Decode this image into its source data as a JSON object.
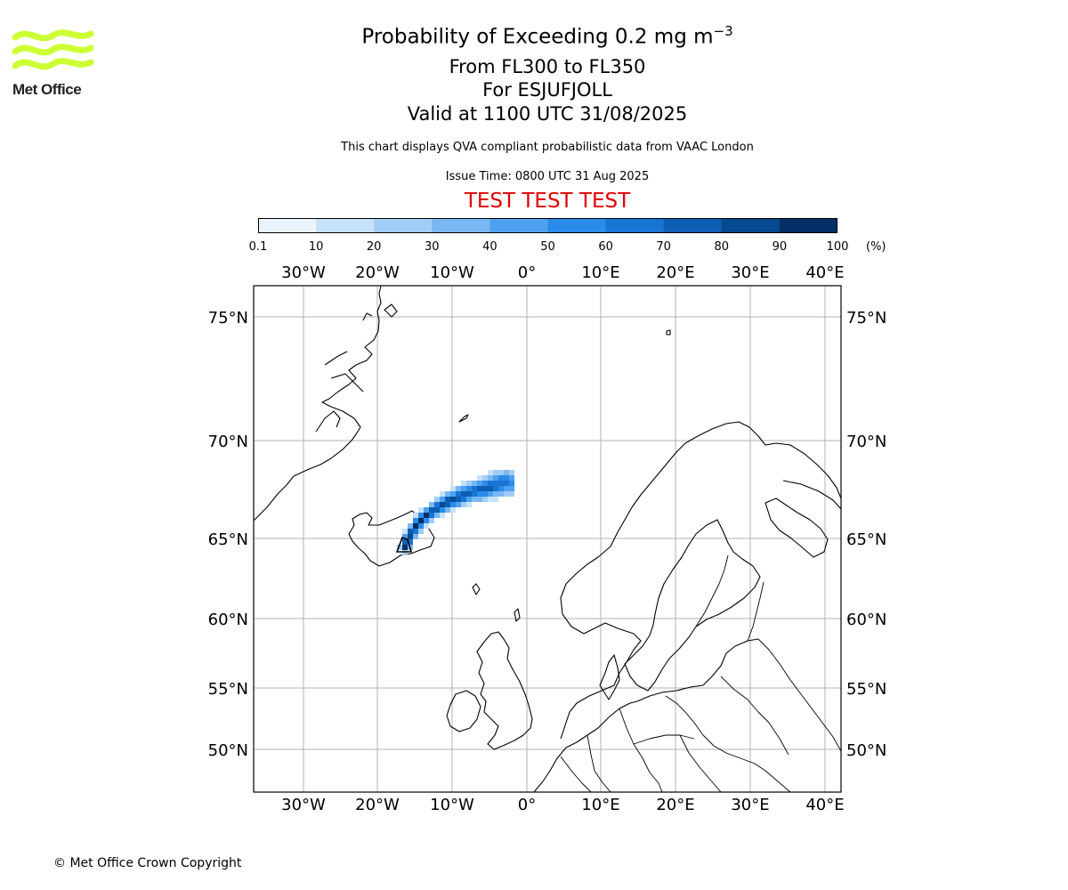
{
  "header": {
    "title_prefix": "Probability of Exceeding 0.2 mg m",
    "title_superscript": "−3",
    "levels": "From FL300 to FL350",
    "location": "For ESJUFJOLL",
    "valid": "Valid at 1100 UTC 31/08/2025",
    "subtitle": "This chart displays QVA compliant probabilistic data from VAAC London",
    "issue_time": "Issue Time: 0800 UTC 31 Aug 2025",
    "test_banner": "TEST TEST TEST"
  },
  "logo": {
    "text": "Met Office",
    "color": "#ccff33"
  },
  "colorbar": {
    "ticks": [
      "0.1",
      "10",
      "20",
      "30",
      "40",
      "50",
      "60",
      "70",
      "80",
      "90",
      "100"
    ],
    "unit": "(%)",
    "colors": [
      "#eaf4fd",
      "#c6e1fa",
      "#a2cdf6",
      "#7ab8f3",
      "#4ea1f0",
      "#2a8bea",
      "#1874d2",
      "#0d5eb3",
      "#064a92",
      "#032f66"
    ]
  },
  "map": {
    "lon_labels": [
      "30°W",
      "20°W",
      "10°W",
      "0°",
      "10°E",
      "20°E",
      "30°E",
      "40°E"
    ],
    "lat_labels": [
      "75°N",
      "70°N",
      "65°N",
      "60°N",
      "55°N",
      "50°N"
    ],
    "gridline_color": "#b0b0b0",
    "plume_color_low": "#a2cdf6",
    "plume_color_high": "#032f66"
  },
  "footer": {
    "copyright": "© Met Office Crown Copyright"
  }
}
